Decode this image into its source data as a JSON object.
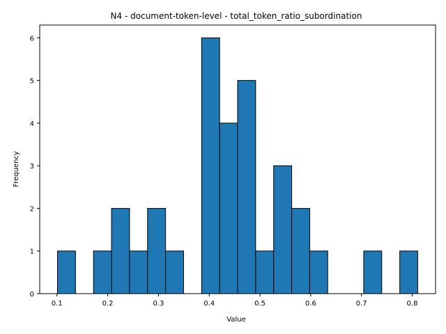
{
  "chart_data": {
    "type": "bar",
    "title": "N4 - document-token-level - total_token_ratio_subordination",
    "xlabel": "Value",
    "ylabel": "Frequency",
    "xlim": [
      0.066,
      0.846
    ],
    "ylim": [
      0,
      6.3
    ],
    "x_ticks": [
      0.1,
      0.2,
      0.3,
      0.4,
      0.5,
      0.6,
      0.7,
      0.8
    ],
    "x_tick_labels": [
      "0.1",
      "0.2",
      "0.3",
      "0.4",
      "0.5",
      "0.6",
      "0.7",
      "0.8"
    ],
    "y_ticks": [
      0,
      1,
      2,
      3,
      4,
      5,
      6
    ],
    "y_tick_labels": [
      "0",
      "1",
      "2",
      "3",
      "4",
      "5",
      "6"
    ],
    "bin_start": 0.101,
    "bin_width": 0.0355,
    "counts": [
      1,
      0,
      1,
      2,
      1,
      2,
      1,
      0,
      6,
      4,
      5,
      1,
      3,
      2,
      1,
      0,
      0,
      1,
      0,
      1
    ],
    "bar_color": "#1f77b4",
    "edge_color": "#000000",
    "grid": false,
    "legend": "none"
  }
}
